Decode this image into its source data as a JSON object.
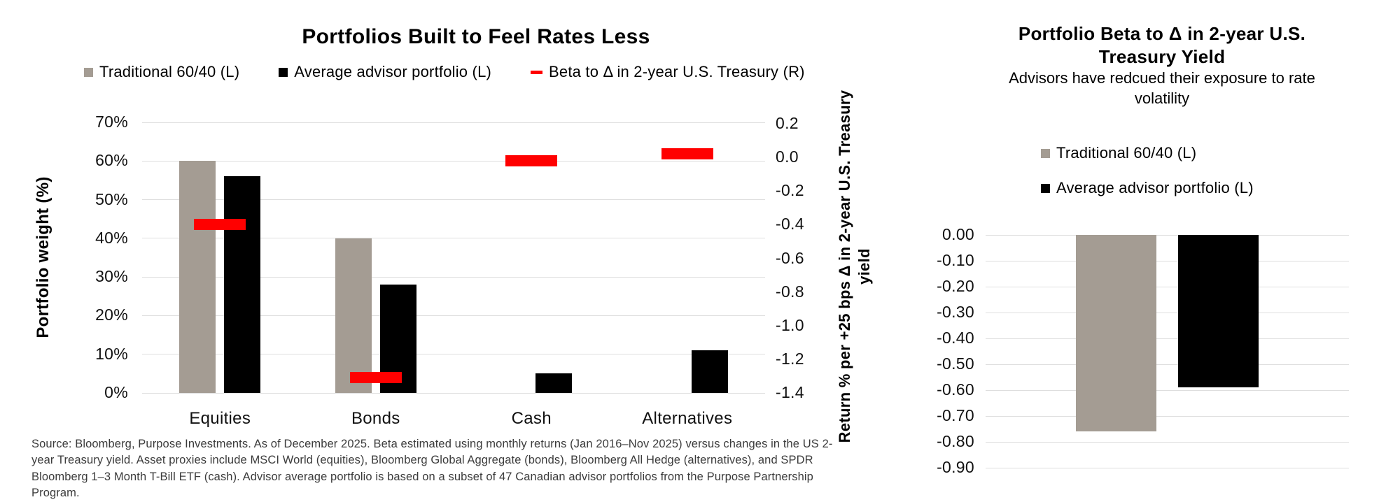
{
  "colors": {
    "bar_gray": "#a49c93",
    "bar_black": "#000000",
    "beta_red": "#ff0000",
    "gridline": "#dedede",
    "text": "#000000",
    "source_text": "#3b3b3b"
  },
  "chart_data": [
    {
      "type": "bar",
      "title": "Portfolios Built to Feel Rates Less",
      "categories": [
        "Equities",
        "Bonds",
        "Cash",
        "Alternatives"
      ],
      "series": [
        {
          "name": "Traditional 60/40 (L)",
          "axis": "left",
          "style": "bar",
          "color_key": "bar_gray",
          "values": [
            60,
            40,
            0,
            0
          ]
        },
        {
          "name": "Average advisor portfolio (L)",
          "axis": "left",
          "style": "bar",
          "color_key": "bar_black",
          "values": [
            56,
            28,
            5,
            11
          ]
        },
        {
          "name": "Beta to Δ in 2-year U.S. Treasury (R)",
          "axis": "right",
          "style": "dash",
          "color_key": "beta_red",
          "values": [
            -0.4,
            -1.31,
            -0.02,
            0.02
          ]
        }
      ],
      "left_axis": {
        "label": "Portfolio weight (%)",
        "min": 0,
        "max": 70,
        "step": 10,
        "format": "percent"
      },
      "right_axis": {
        "label": "Return % per +25 bps Δ in 2-year U.S. Treasury yield",
        "min": -1.4,
        "max": 0.2,
        "step": 0.2,
        "format": "1dp"
      },
      "grid": true,
      "legend_position": "top",
      "source": "Source: Bloomberg, Purpose Investments. As of December 2025. Beta estimated using monthly returns (Jan 2016–Nov 2025) versus changes in the US 2-year Treasury yield. Asset proxies include MSCI World (equities), Bloomberg Global Aggregate (bonds), Bloomberg All Hedge (alternatives), and SPDR Bloomberg 1–3 Month T-Bill ETF (cash). Advisor average portfolio is based on a subset of 47 Canadian advisor portfolios from the Purpose Partnership Program."
    },
    {
      "type": "bar",
      "title": "Portfolio Beta to Δ in 2-year U.S. Treasury Yield",
      "subtitle": "Advisors have redcued their exposure to rate volatility",
      "categories": [
        ""
      ],
      "series": [
        {
          "name": "Traditional 60/40 (L)",
          "style": "bar",
          "color_key": "bar_gray",
          "values": [
            -0.76
          ]
        },
        {
          "name": "Average advisor portfolio (L)",
          "style": "bar",
          "color_key": "bar_black",
          "values": [
            -0.59
          ]
        }
      ],
      "y_axis": {
        "min": -0.9,
        "max": 0,
        "step": 0.1,
        "format": "2dp"
      },
      "grid": true,
      "legend_position": "top"
    }
  ]
}
